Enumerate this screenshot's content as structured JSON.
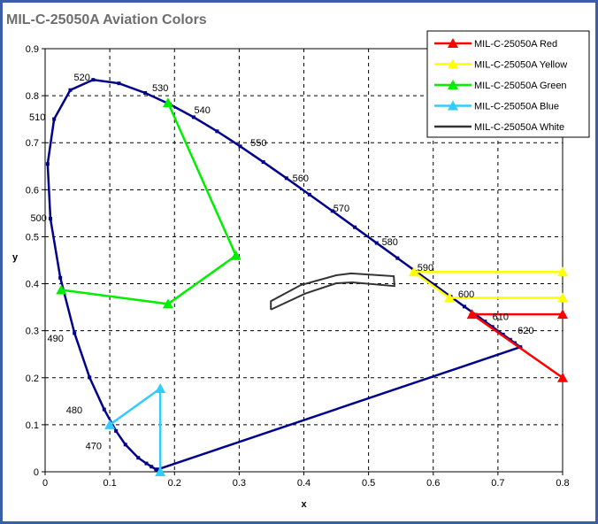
{
  "chart_data": {
    "type": "line",
    "title": "MIL-C-25050A Aviation Colors",
    "xlabel": "x",
    "ylabel": "y",
    "xlim": [
      0,
      0.8
    ],
    "ylim": [
      0,
      0.9
    ],
    "xticks": [
      "0",
      "0.1",
      "0.2",
      "0.3",
      "0.4",
      "0.5",
      "0.6",
      "0.7",
      "0.8"
    ],
    "yticks": [
      "0",
      "0.1",
      "0.2",
      "0.3",
      "0.4",
      "0.5",
      "0.6",
      "0.7",
      "0.8",
      "0.9"
    ],
    "grid": true,
    "legend_position": "top-right",
    "locus": {
      "color": "#00008b",
      "points": [
        [
          0.1741,
          0.005
        ],
        [
          0.1733,
          0.0048
        ],
        [
          0.1714,
          0.0051
        ],
        [
          0.1644,
          0.0109
        ],
        [
          0.1566,
          0.0177
        ],
        [
          0.144,
          0.0297
        ],
        [
          0.1241,
          0.0578
        ],
        [
          0.1096,
          0.0868
        ],
        [
          0.0913,
          0.1327
        ],
        [
          0.0687,
          0.2007
        ],
        [
          0.0454,
          0.295
        ],
        [
          0.0235,
          0.4127
        ],
        [
          0.0082,
          0.5384
        ],
        [
          0.0039,
          0.6548
        ],
        [
          0.0139,
          0.7502
        ],
        [
          0.0389,
          0.812
        ],
        [
          0.0743,
          0.8338
        ],
        [
          0.1142,
          0.8262
        ],
        [
          0.1547,
          0.8059
        ],
        [
          0.1929,
          0.7816
        ],
        [
          0.2296,
          0.7543
        ],
        [
          0.2658,
          0.7243
        ],
        [
          0.3016,
          0.6923
        ],
        [
          0.3373,
          0.6589
        ],
        [
          0.3731,
          0.6245
        ],
        [
          0.4087,
          0.5896
        ],
        [
          0.4441,
          0.5547
        ],
        [
          0.4788,
          0.5202
        ],
        [
          0.5125,
          0.4866
        ],
        [
          0.5448,
          0.4544
        ],
        [
          0.5752,
          0.4242
        ],
        [
          0.6029,
          0.3965
        ],
        [
          0.627,
          0.3725
        ],
        [
          0.6482,
          0.3514
        ],
        [
          0.6658,
          0.334
        ],
        [
          0.6801,
          0.3197
        ],
        [
          0.6915,
          0.3083
        ],
        [
          0.7079,
          0.292
        ],
        [
          0.719,
          0.2809
        ],
        [
          0.726,
          0.274
        ],
        [
          0.7347,
          0.2653
        ],
        [
          0.1741,
          0.005
        ]
      ]
    },
    "series": [
      {
        "name": "MIL-C-25050A Red",
        "color": "#ff0000",
        "marker": "triangle",
        "points": [
          [
            0.8,
            0.335
          ],
          [
            0.66,
            0.335
          ],
          [
            0.8,
            0.2
          ]
        ]
      },
      {
        "name": "MIL-C-25050A Yellow",
        "color": "#ffff00",
        "marker": "triangle",
        "points": [
          [
            0.8,
            0.425
          ],
          [
            0.57,
            0.425
          ],
          [
            0.625,
            0.37
          ],
          [
            0.8,
            0.37
          ]
        ]
      },
      {
        "name": "MIL-C-25050A Green",
        "color": "#00ee00",
        "marker": "triangle",
        "points": [
          [
            0.19,
            0.785
          ],
          [
            0.295,
            0.46
          ],
          [
            0.19,
            0.357
          ],
          [
            0.025,
            0.387
          ]
        ]
      },
      {
        "name": "MIL-C-25050A Blue",
        "color": "#33ccff",
        "marker": "triangle",
        "points": [
          [
            0.1,
            0.1
          ],
          [
            0.178,
            0.177
          ],
          [
            0.178,
            0.0
          ]
        ]
      },
      {
        "name": "MIL-C-25050A White",
        "color": "#333333",
        "marker": "none",
        "points": [
          [
            0.349,
            0.345
          ],
          [
            0.349,
            0.363
          ],
          [
            0.395,
            0.397
          ],
          [
            0.45,
            0.418
          ],
          [
            0.473,
            0.422
          ],
          [
            0.539,
            0.416
          ],
          [
            0.54,
            0.395
          ],
          [
            0.475,
            0.403
          ],
          [
            0.45,
            0.401
          ],
          [
            0.402,
            0.379
          ],
          [
            0.349,
            0.345
          ]
        ]
      }
    ],
    "annotations": [
      {
        "text": "520",
        "x": 0.057,
        "y": 0.84
      },
      {
        "text": "530",
        "x": 0.178,
        "y": 0.817
      },
      {
        "text": "540",
        "x": 0.243,
        "y": 0.77
      },
      {
        "text": "550",
        "x": 0.33,
        "y": 0.7
      },
      {
        "text": "560",
        "x": 0.395,
        "y": 0.625
      },
      {
        "text": "570",
        "x": 0.458,
        "y": 0.561
      },
      {
        "text": "580",
        "x": 0.533,
        "y": 0.49
      },
      {
        "text": "590",
        "x": 0.588,
        "y": 0.435
      },
      {
        "text": "600",
        "x": 0.651,
        "y": 0.378
      },
      {
        "text": "610",
        "x": 0.704,
        "y": 0.33
      },
      {
        "text": "620",
        "x": 0.743,
        "y": 0.301
      },
      {
        "text": "510",
        "x": -0.012,
        "y": 0.755
      },
      {
        "text": "500",
        "x": -0.01,
        "y": 0.54
      },
      {
        "text": "490",
        "x": 0.016,
        "y": 0.284
      },
      {
        "text": "480",
        "x": 0.045,
        "y": 0.132
      },
      {
        "text": "470",
        "x": 0.075,
        "y": 0.056
      }
    ]
  }
}
